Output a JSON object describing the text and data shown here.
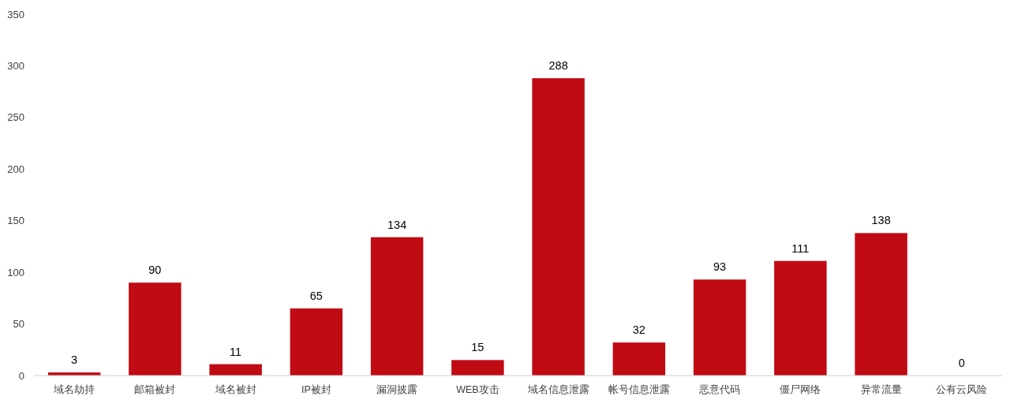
{
  "chart_data": {
    "type": "bar",
    "categories": [
      "域名劫持",
      "邮箱被封",
      "域名被封",
      "IP被封",
      "漏洞披露",
      "WEB攻击",
      "域名信息泄露",
      "帐号信息泄露",
      "恶意代码",
      "僵尸网络",
      "异常流量",
      "公有云风险"
    ],
    "values": [
      3,
      90,
      11,
      65,
      134,
      15,
      288,
      32,
      93,
      111,
      138,
      0
    ],
    "color": "#c00a14",
    "ylim": [
      0,
      350
    ],
    "yticks": [
      0,
      50,
      100,
      150,
      200,
      250,
      300,
      350
    ],
    "data_labels": true
  }
}
